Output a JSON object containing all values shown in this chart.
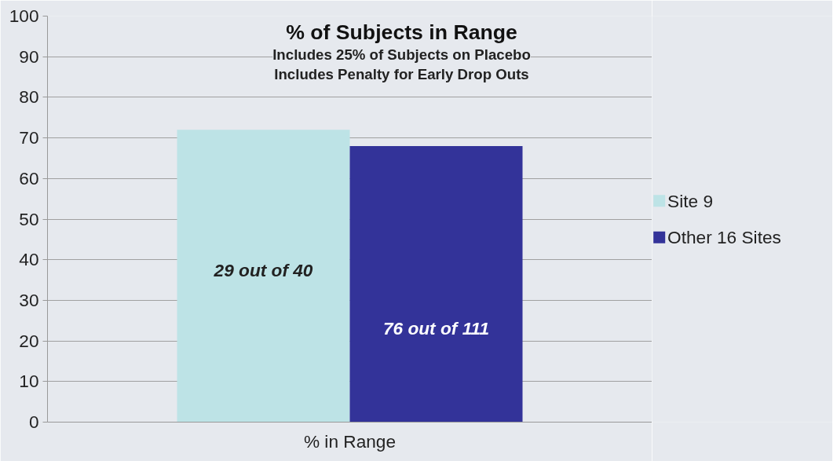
{
  "chart_data": {
    "type": "bar",
    "title": "% of Subjects in Range",
    "subtitle": "Includes 25% of Subjects on Placebo\nIncludes Penalty for Early Drop Outs",
    "categories": [
      "% in Range"
    ],
    "series": [
      {
        "name": "Site 9",
        "color": "#bde3e6",
        "values": [
          72
        ]
      },
      {
        "name": "Other 16 Sites",
        "color": "#333399",
        "values": [
          68
        ]
      }
    ],
    "annotations": [
      "29 out of 40",
      "76 out of 111"
    ],
    "ylim": [
      0,
      100
    ],
    "yticks": [
      0,
      10,
      20,
      30,
      40,
      50,
      60,
      70,
      80,
      90,
      100
    ],
    "grid": "y",
    "legend": "right"
  }
}
